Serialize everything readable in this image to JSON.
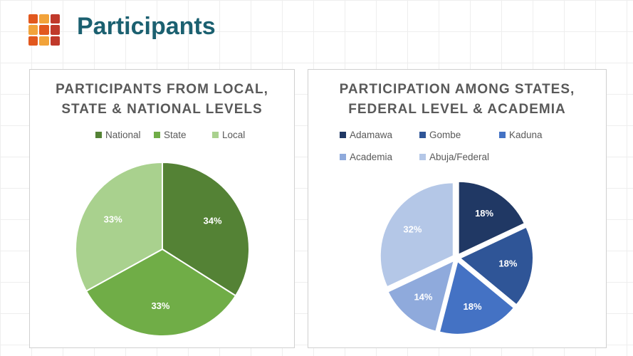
{
  "header": {
    "title": "Participants"
  },
  "chart_data": [
    {
      "type": "pie",
      "title": "PARTICIPANTS FROM LOCAL, STATE & NATIONAL LEVELS",
      "categories": [
        "National",
        "State",
        "Local"
      ],
      "values": [
        34,
        33,
        33
      ],
      "value_labels": [
        "34%",
        "33%",
        "33%"
      ],
      "colors": [
        "#548235",
        "#70ad47",
        "#a9d18e"
      ],
      "legend": "top"
    },
    {
      "type": "pie",
      "title": "PARTICIPATION AMONG STATES, FEDERAL LEVEL & ACADEMIA",
      "categories": [
        "Adamawa",
        "Gombe",
        "Kaduna",
        "Academia",
        "Abuja/Federal"
      ],
      "values": [
        18,
        18,
        18,
        14,
        32
      ],
      "value_labels": [
        "18%",
        "18%",
        "18%",
        "14%",
        "32%"
      ],
      "colors": [
        "#203864",
        "#2f5597",
        "#4472c4",
        "#8faadc",
        "#b4c7e7"
      ],
      "legend": "top",
      "explode": true
    }
  ]
}
